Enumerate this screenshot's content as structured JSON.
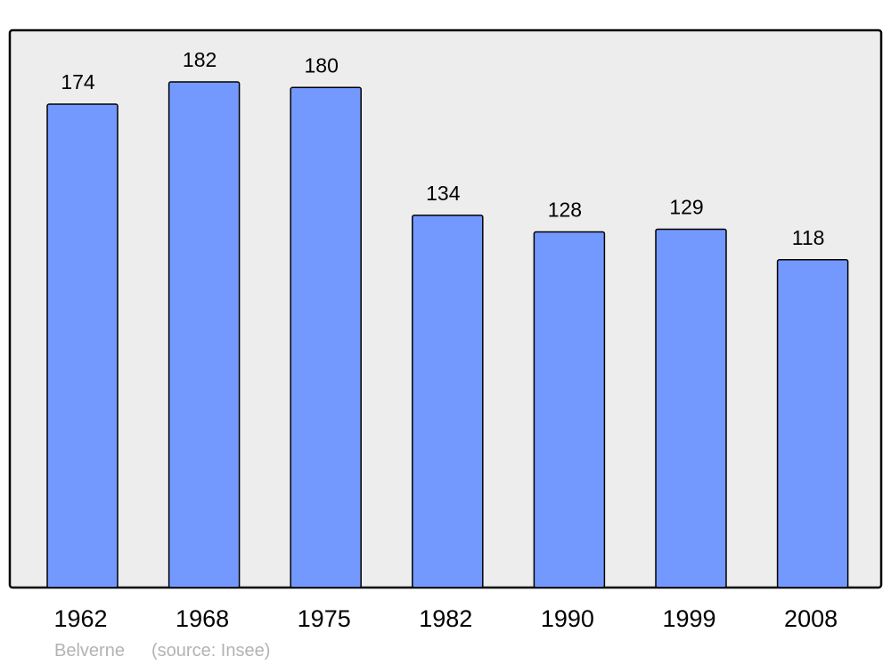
{
  "chart_data": {
    "type": "bar",
    "title": "",
    "xlabel": "",
    "ylabel": "",
    "categories": [
      "1962",
      "1968",
      "1975",
      "1982",
      "1990",
      "1999",
      "2008"
    ],
    "values": [
      174,
      182,
      180,
      134,
      128,
      129,
      118
    ],
    "data_labels": [
      "174",
      "182",
      "180",
      "134",
      "128",
      "129",
      "118"
    ],
    "ylim": [
      0,
      200.6
    ],
    "grid": false,
    "legend": "none",
    "colors": {
      "bar": "#7399ff",
      "background": "#ededed",
      "border": "#000000"
    }
  },
  "footer": {
    "place": "Belverne",
    "source": "(source: Insee)"
  }
}
